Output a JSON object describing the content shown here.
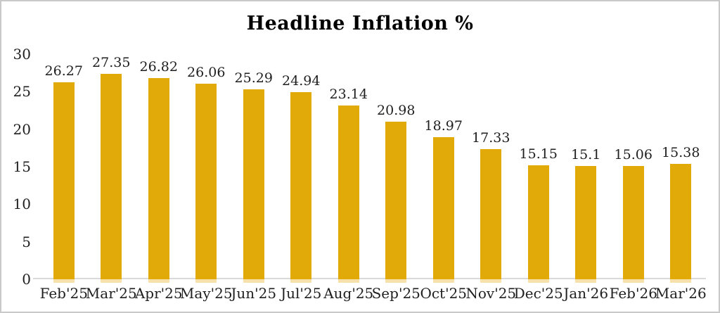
{
  "chart_data": {
    "type": "bar",
    "title": "Headline Inflation %",
    "categories": [
      "Feb'25",
      "Mar'25",
      "Apr'25",
      "May'25",
      "Jun'25",
      "Jul'25",
      "Aug'25",
      "Sep'25",
      "Oct'25",
      "Nov'25",
      "Dec'25",
      "Jan'26",
      "Feb'26",
      "Mar'26"
    ],
    "values": [
      26.27,
      27.35,
      26.82,
      26.06,
      25.29,
      24.94,
      23.14,
      20.98,
      18.97,
      17.33,
      15.15,
      15.1,
      15.06,
      15.38
    ],
    "value_labels": [
      "26.27",
      "27.35",
      "26.82",
      "26.06",
      "25.29",
      "24.94",
      "23.14",
      "20.98",
      "18.97",
      "17.33",
      "15.15",
      "15.1",
      "15.06",
      "15.38"
    ],
    "xlabel": "",
    "ylabel": "",
    "ylim": [
      0,
      30
    ],
    "yticks": [
      0,
      5,
      10,
      15,
      20,
      25,
      30
    ],
    "grid": false,
    "legend": "none",
    "data_labels": "above bars",
    "bar_color": "#E1AA08",
    "text_color": "#1f1f1f",
    "axis_line_color": "#d9d9d9",
    "frame_border_color": "#c9c9c9",
    "background_color": "#ffffff"
  }
}
